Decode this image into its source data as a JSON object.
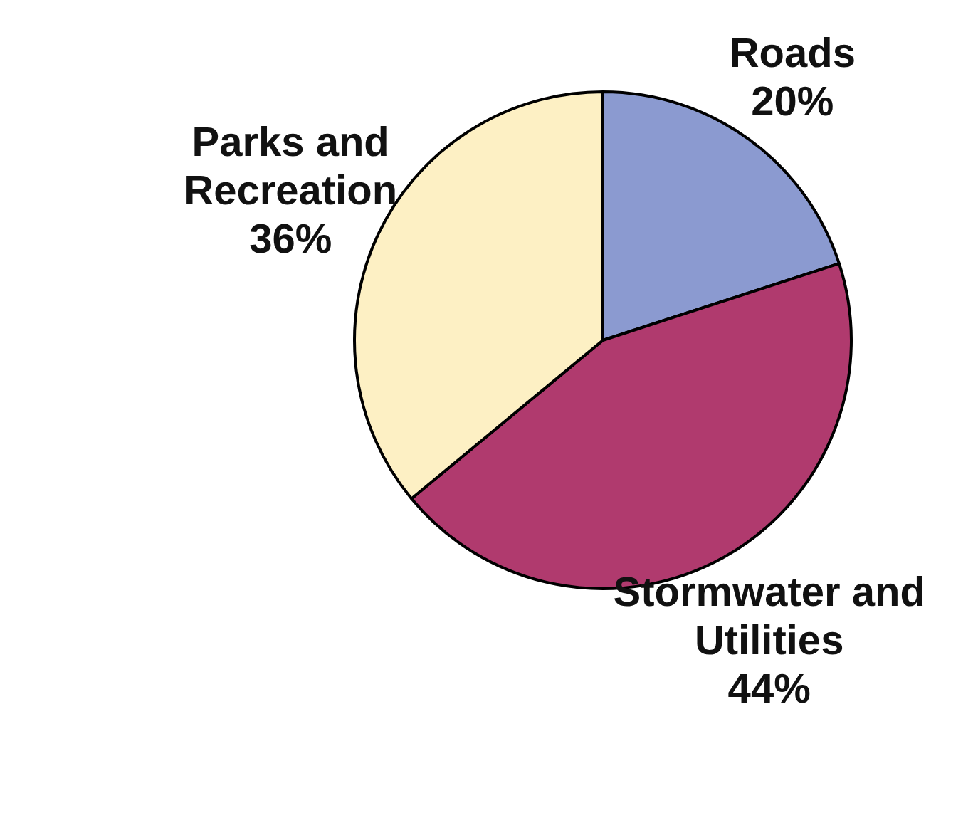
{
  "chart_data": {
    "type": "pie",
    "categories": [
      "Roads",
      "Stormwater and Utilities",
      "Parks and Recreation"
    ],
    "values": [
      20,
      44,
      36
    ],
    "colors": [
      "#8b9ad0",
      "#b03a6e",
      "#fdf0c4"
    ],
    "value_labels": [
      "20%",
      "44%",
      "36%"
    ],
    "legend": false
  }
}
